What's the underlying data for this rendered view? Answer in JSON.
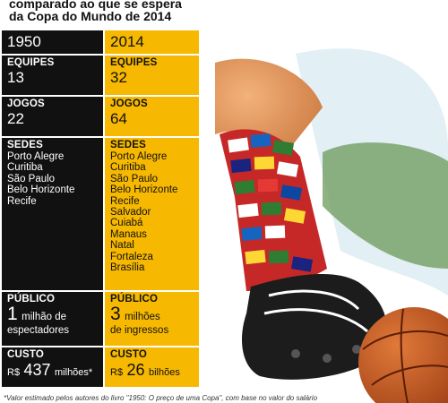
{
  "title": {
    "line1": "comparado ao que se espera",
    "line2": "da Copa do Mundo de 2014"
  },
  "left": {
    "year": "1950",
    "teams_label": "EQUIPES",
    "teams": "13",
    "games_label": "JOGOS",
    "games": "22",
    "hosts_label": "SEDES",
    "hosts": [
      "Porto Alegre",
      "Curitiba",
      "São Paulo",
      "Belo Horizonte",
      "Recife"
    ],
    "audience_label": "PÚBLICO",
    "audience_num": "1",
    "audience_unit": "milhão de",
    "audience_line2": "espectadores",
    "cost_label": "CUSTO",
    "cost_prefix": "R$",
    "cost_num": "437",
    "cost_suffix": "milhões*"
  },
  "right": {
    "year": "2014",
    "teams_label": "EQUIPES",
    "teams": "32",
    "games_label": "JOGOS",
    "games": "64",
    "hosts_label": "SEDES",
    "hosts": [
      "Porto Alegre",
      "Curitiba",
      "São Paulo",
      "Belo Horizonte",
      "Recife",
      "Salvador",
      "Cuiabá",
      "Manaus",
      "Natal",
      "Fortaleza",
      "Brasília"
    ],
    "audience_label": "PÚBLICO",
    "audience_num": "3",
    "audience_unit": "milhões",
    "audience_line2": "de ingressos",
    "cost_label": "CUSTO",
    "cost_prefix": "R$",
    "cost_num": "26",
    "cost_suffix": "bilhões"
  },
  "footnote": "*Valor estimado pelos autores do livro \"1950: O preço de uma Copa\", com base no valor do salário",
  "colors": {
    "black": "#111111",
    "yellow": "#f6b800"
  },
  "icons": [
    "world-cup-poster-art",
    "soccer-ball-icon",
    "football-boot-icon",
    "flag-sock-icon"
  ]
}
